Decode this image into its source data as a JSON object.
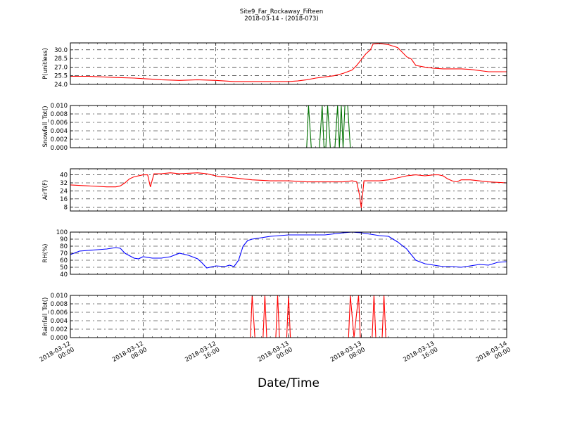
{
  "chart_data": {
    "type": "line",
    "title": "Site9_Far_Rockaway_Fifteen",
    "subtitle": "2018-03-14 - (2018-073)",
    "xlabel": "Date/Time",
    "x_ticks": [
      {
        "t": 0,
        "line1": "2018-03-12",
        "line2": "00:00"
      },
      {
        "t": 8,
        "line1": "2018-03-12",
        "line2": "08:00"
      },
      {
        "t": 16,
        "line1": "2018-03-12",
        "line2": "16:00"
      },
      {
        "t": 24,
        "line1": "2018-03-13",
        "line2": "00:00"
      },
      {
        "t": 32,
        "line1": "2018-03-13",
        "line2": "08:00"
      },
      {
        "t": 40,
        "line1": "2018-03-13",
        "line2": "16:00"
      },
      {
        "t": 48,
        "line1": "2018-03-14",
        "line2": "00:00"
      }
    ],
    "x_unit_note": "hours from 2018-03-12 00:00",
    "grid": true,
    "panels": [
      {
        "ylabel": "P(unitless)",
        "ylim": [
          24.0,
          31.2
        ],
        "yticks": [
          "24.0",
          "25.5",
          "27.0",
          "28.5",
          "30.0"
        ],
        "ytick_values": [
          24.0,
          25.5,
          27.0,
          28.5,
          30.0
        ],
        "color": "#ff0000",
        "points": [
          [
            0,
            25.4
          ],
          [
            2,
            25.4
          ],
          [
            3.5,
            25.3
          ],
          [
            5,
            25.2
          ],
          [
            7,
            25.1
          ],
          [
            8,
            25.0
          ],
          [
            9,
            24.9
          ],
          [
            10,
            24.8
          ],
          [
            12,
            24.7
          ],
          [
            14,
            24.8
          ],
          [
            16,
            24.7
          ],
          [
            18,
            24.5
          ],
          [
            20,
            24.5
          ],
          [
            22,
            24.5
          ],
          [
            24,
            24.5
          ],
          [
            25,
            24.6
          ],
          [
            26,
            24.8
          ],
          [
            27,
            25.1
          ],
          [
            28,
            25.3
          ],
          [
            29,
            25.5
          ],
          [
            30,
            25.9
          ],
          [
            31,
            26.5
          ],
          [
            31.5,
            27.3
          ],
          [
            32,
            28.3
          ],
          [
            32.5,
            29.3
          ],
          [
            33,
            30.0
          ],
          [
            33.3,
            31.0
          ],
          [
            34,
            31.1
          ],
          [
            35,
            30.9
          ],
          [
            36,
            30.4
          ],
          [
            37,
            28.8
          ],
          [
            37.5,
            28.4
          ],
          [
            38,
            27.3
          ],
          [
            39,
            27.0
          ],
          [
            40,
            26.8
          ],
          [
            41,
            26.7
          ],
          [
            43,
            26.7
          ],
          [
            44,
            26.6
          ],
          [
            46,
            26.2
          ],
          [
            48,
            26.2
          ]
        ]
      },
      {
        "ylabel": "Snowfall_Tot()",
        "ylim": [
          0.0,
          0.01
        ],
        "yticks": [
          "0.000",
          "0.002",
          "0.004",
          "0.006",
          "0.008",
          "0.010"
        ],
        "ytick_values": [
          0.0,
          0.002,
          0.004,
          0.006,
          0.008,
          0.01
        ],
        "color": "#007000",
        "points": [
          [
            0,
            0
          ],
          [
            26,
            0
          ],
          [
            26.2,
            0.01
          ],
          [
            26.5,
            0
          ],
          [
            27.4,
            0
          ],
          [
            27.7,
            0.01
          ],
          [
            27.9,
            0
          ],
          [
            28.1,
            0
          ],
          [
            28.3,
            0.01
          ],
          [
            28.6,
            0
          ],
          [
            29.1,
            0
          ],
          [
            29.4,
            0.01
          ],
          [
            29.6,
            0
          ],
          [
            29.8,
            0.01
          ],
          [
            30.0,
            0
          ],
          [
            30.2,
            0.01
          ],
          [
            30.5,
            0.01
          ],
          [
            30.8,
            0
          ],
          [
            48,
            0
          ]
        ]
      },
      {
        "ylabel": "AirT(F)",
        "ylim": [
          4,
          46
        ],
        "yticks": [
          "8",
          "16",
          "24",
          "32",
          "40"
        ],
        "ytick_values": [
          8,
          16,
          24,
          32,
          40
        ],
        "color": "#ff0000",
        "points": [
          [
            0,
            30
          ],
          [
            2,
            29
          ],
          [
            4,
            28
          ],
          [
            5,
            28
          ],
          [
            5.5,
            29
          ],
          [
            6,
            32
          ],
          [
            6.5,
            36
          ],
          [
            7,
            38
          ],
          [
            8,
            40
          ],
          [
            8.5,
            40
          ],
          [
            8.8,
            28
          ],
          [
            9.2,
            41
          ],
          [
            10,
            41
          ],
          [
            11,
            42
          ],
          [
            12,
            41
          ],
          [
            14,
            42
          ],
          [
            15,
            41
          ],
          [
            16,
            39
          ],
          [
            16.5,
            38
          ],
          [
            17,
            38
          ],
          [
            18,
            37
          ],
          [
            19,
            36
          ],
          [
            20,
            35
          ],
          [
            22,
            34
          ],
          [
            24,
            34
          ],
          [
            26,
            33
          ],
          [
            28,
            33
          ],
          [
            29,
            33
          ],
          [
            30,
            33
          ],
          [
            31,
            34
          ],
          [
            31.5,
            33
          ],
          [
            31.8,
            20
          ],
          [
            32,
            7
          ],
          [
            32.3,
            34
          ],
          [
            34,
            34
          ],
          [
            35,
            35
          ],
          [
            36,
            37
          ],
          [
            37,
            39
          ],
          [
            38,
            40
          ],
          [
            39,
            39
          ],
          [
            40,
            40
          ],
          [
            40.5,
            40
          ],
          [
            41,
            39
          ],
          [
            41.5,
            36
          ],
          [
            42,
            34
          ],
          [
            42.5,
            33
          ],
          [
            43,
            35
          ],
          [
            44,
            35
          ],
          [
            46,
            33
          ],
          [
            48,
            32
          ]
        ]
      },
      {
        "ylabel": "RH(%)",
        "ylim": [
          40,
          100
        ],
        "yticks": [
          "40",
          "50",
          "60",
          "70",
          "80",
          "90",
          "100"
        ],
        "ytick_values": [
          40,
          50,
          60,
          70,
          80,
          90,
          100
        ],
        "color": "#0000ff",
        "points": [
          [
            0,
            68
          ],
          [
            1,
            73
          ],
          [
            2,
            74
          ],
          [
            3,
            75
          ],
          [
            4,
            76
          ],
          [
            5,
            78
          ],
          [
            5.5,
            77
          ],
          [
            6,
            70
          ],
          [
            7,
            63
          ],
          [
            7.5,
            62
          ],
          [
            8,
            65
          ],
          [
            9,
            63
          ],
          [
            10,
            63
          ],
          [
            11,
            65
          ],
          [
            12,
            70
          ],
          [
            13,
            67
          ],
          [
            14,
            62
          ],
          [
            14.5,
            56
          ],
          [
            15,
            49
          ],
          [
            16,
            52
          ],
          [
            17,
            51
          ],
          [
            17.5,
            53
          ],
          [
            18,
            51
          ],
          [
            18.5,
            60
          ],
          [
            19,
            80
          ],
          [
            19.5,
            88
          ],
          [
            20,
            90
          ],
          [
            21,
            92
          ],
          [
            22,
            94
          ],
          [
            23,
            95
          ],
          [
            24,
            96
          ],
          [
            26,
            96
          ],
          [
            28,
            96
          ],
          [
            30,
            99
          ],
          [
            31,
            100
          ],
          [
            32,
            99
          ],
          [
            33,
            97
          ],
          [
            34,
            95
          ],
          [
            35,
            94
          ],
          [
            36,
            86
          ],
          [
            37,
            76
          ],
          [
            38,
            60
          ],
          [
            39,
            55
          ],
          [
            40,
            53
          ],
          [
            41,
            51
          ],
          [
            42,
            51
          ],
          [
            43,
            50
          ],
          [
            44,
            52
          ],
          [
            45,
            54
          ],
          [
            46,
            53
          ],
          [
            47,
            57
          ],
          [
            48,
            58
          ]
        ]
      },
      {
        "ylabel": "Rainfall_Tot()",
        "ylim": [
          0.0,
          0.01
        ],
        "yticks": [
          "0.000",
          "0.002",
          "0.004",
          "0.006",
          "0.008",
          "0.010"
        ],
        "ytick_values": [
          0.0,
          0.002,
          0.004,
          0.006,
          0.008,
          0.01
        ],
        "color": "#ff0000",
        "points": [
          [
            0,
            0
          ],
          [
            19.8,
            0
          ],
          [
            20.0,
            0.01
          ],
          [
            20.3,
            0
          ],
          [
            21.2,
            0
          ],
          [
            21.4,
            0.01
          ],
          [
            21.6,
            0
          ],
          [
            22.6,
            0
          ],
          [
            22.8,
            0.01
          ],
          [
            23.0,
            0
          ],
          [
            23.8,
            0
          ],
          [
            24.0,
            0.01
          ],
          [
            24.2,
            0
          ],
          [
            30.6,
            0
          ],
          [
            30.8,
            0.01
          ],
          [
            31.2,
            0
          ],
          [
            31.7,
            0.01
          ],
          [
            31.9,
            0
          ],
          [
            33.2,
            0
          ],
          [
            33.4,
            0.01
          ],
          [
            33.6,
            0
          ],
          [
            34.3,
            0
          ],
          [
            34.5,
            0.01
          ],
          [
            34.7,
            0
          ],
          [
            48,
            0
          ]
        ]
      }
    ]
  }
}
